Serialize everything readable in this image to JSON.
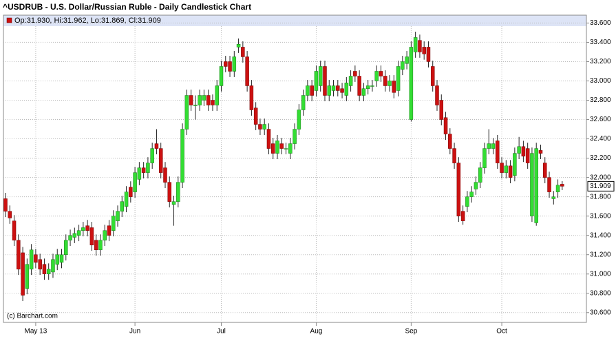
{
  "chart_data": {
    "type": "candlestick",
    "title": "^USDRUB - U.S. Dollar/Russian Ruble - Daily Candlestick Chart",
    "ohlc_label": "Op:31.930, Hi:31.962, Lo:31.869, Cl:31.909",
    "source": "(c) Barchart.com",
    "up_color": "#33dd33",
    "down_color": "#cc1111",
    "grid": true,
    "ylim": [
      30.52,
      33.66
    ],
    "yticks": [
      {
        "value": 30.6,
        "label": "30.600"
      },
      {
        "value": 30.8,
        "label": "30.800"
      },
      {
        "value": 31.0,
        "label": "31.000"
      },
      {
        "value": 31.2,
        "label": "31.200"
      },
      {
        "value": 31.4,
        "label": "31.400"
      },
      {
        "value": 31.6,
        "label": "31.600"
      },
      {
        "value": 31.8,
        "label": "31.800"
      },
      {
        "value": 32.0,
        "label": "32.000"
      },
      {
        "value": 32.2,
        "label": "32.200"
      },
      {
        "value": 32.4,
        "label": "32.400"
      },
      {
        "value": 32.6,
        "label": "32.600"
      },
      {
        "value": 32.8,
        "label": "32.800"
      },
      {
        "value": 33.0,
        "label": "33.000"
      },
      {
        "value": 33.2,
        "label": "33.200"
      },
      {
        "value": 33.4,
        "label": "33.400"
      },
      {
        "value": 33.6,
        "label": "33.600"
      }
    ],
    "categories": [
      null,
      null,
      null,
      null,
      null,
      null,
      null,
      "May 13",
      null,
      null,
      null,
      null,
      null,
      null,
      null,
      null,
      null,
      null,
      null,
      null,
      null,
      null,
      null,
      null,
      null,
      null,
      null,
      null,
      null,
      null,
      "Jun",
      null,
      null,
      null,
      null,
      null,
      null,
      null,
      null,
      null,
      null,
      null,
      null,
      null,
      null,
      null,
      null,
      null,
      null,
      null,
      "Jul",
      null,
      null,
      null,
      null,
      null,
      null,
      null,
      null,
      null,
      null,
      null,
      null,
      null,
      null,
      null,
      null,
      null,
      null,
      null,
      null,
      null,
      "Aug",
      null,
      null,
      null,
      null,
      null,
      null,
      null,
      null,
      null,
      null,
      null,
      null,
      null,
      null,
      null,
      null,
      null,
      null,
      null,
      null,
      null,
      "Sep",
      null,
      null,
      null,
      null,
      null,
      null,
      null,
      null,
      null,
      null,
      null,
      null,
      null,
      null,
      null,
      null,
      null,
      null,
      null,
      null,
      "Oct",
      null,
      null,
      null,
      null,
      null,
      null,
      null,
      null,
      null,
      null,
      null,
      null,
      null,
      null
    ],
    "open": [
      31.78,
      31.65,
      31.55,
      31.35,
      31.22,
      30.85,
      31.05,
      31.2,
      31.15,
      31.1,
      31.0,
      31.02,
      31.1,
      31.12,
      31.2,
      31.35,
      31.38,
      31.4,
      31.45,
      31.5,
      31.48,
      31.35,
      31.25,
      31.35,
      31.5,
      31.45,
      31.55,
      31.65,
      31.7,
      31.9,
      31.85,
      31.98,
      32.1,
      32.05,
      32.15,
      32.35,
      32.3,
      32.1,
      31.95,
      31.72,
      31.75,
      31.95,
      32.5,
      32.85,
      32.75,
      32.75,
      32.8,
      32.85,
      32.8,
      32.75,
      32.95,
      33.2,
      33.2,
      33.1,
      33.35,
      33.35,
      33.25,
      32.95,
      32.72,
      32.55,
      32.5,
      32.5,
      32.35,
      32.25,
      32.35,
      32.3,
      32.25,
      32.35,
      32.5,
      32.7,
      32.85,
      32.95,
      32.9,
      32.95,
      33.15,
      32.85,
      32.9,
      32.95,
      32.92,
      32.85,
      32.95,
      33.1,
      33.05,
      32.85,
      32.92,
      32.95,
      33.0,
      33.1,
      33.05,
      32.95,
      33.0,
      32.9,
      33.12,
      33.18,
      32.6,
      33.3,
      33.42,
      33.35,
      33.35,
      33.15,
      32.95,
      32.8,
      32.62,
      32.45,
      32.3,
      32.15,
      31.65,
      31.7,
      31.8,
      31.88,
      31.95,
      32.1,
      32.3,
      32.3,
      32.38,
      32.15,
      32.05,
      32.12,
      32.02,
      32.25,
      32.32,
      32.3,
      31.6,
      31.53,
      32.28,
      32.15,
      32.0,
      31.78,
      31.85,
      31.93
    ],
    "high": [
      31.84,
      31.71,
      31.61,
      31.41,
      31.28,
      31.16,
      31.31,
      31.26,
      31.21,
      31.16,
      31.11,
      31.21,
      31.26,
      31.26,
      31.41,
      31.46,
      31.48,
      31.51,
      31.54,
      31.56,
      31.54,
      31.41,
      31.41,
      31.51,
      31.56,
      31.66,
      31.71,
      31.81,
      31.91,
      31.96,
      32.11,
      32.16,
      32.16,
      32.21,
      32.36,
      32.5,
      32.36,
      32.16,
      32.01,
      31.81,
      32.01,
      32.56,
      32.91,
      32.91,
      32.85,
      32.91,
      32.91,
      32.91,
      32.86,
      33.01,
      33.21,
      33.26,
      33.26,
      33.31,
      33.44,
      33.41,
      33.31,
      33.01,
      32.78,
      32.61,
      32.61,
      32.56,
      32.41,
      32.44,
      32.41,
      32.36,
      32.41,
      32.56,
      32.76,
      32.91,
      33.01,
      33.01,
      33.16,
      33.21,
      33.21,
      33.01,
      33.01,
      33.01,
      32.98,
      33.04,
      33.11,
      33.16,
      33.11,
      32.98,
      33.01,
      33.01,
      33.16,
      33.16,
      33.11,
      33.06,
      33.06,
      33.21,
      33.26,
      33.31,
      33.41,
      33.51,
      33.48,
      33.41,
      33.41,
      33.21,
      33.01,
      32.86,
      32.68,
      32.51,
      32.36,
      32.21,
      31.71,
      31.86,
      31.91,
      32.01,
      32.16,
      32.36,
      32.5,
      32.41,
      32.44,
      32.21,
      32.18,
      32.18,
      32.31,
      32.42,
      32.38,
      32.36,
      32.31,
      32.36,
      32.34,
      32.21,
      32.06,
      31.86,
      31.98,
      31.962
    ],
    "low": [
      31.59,
      31.52,
      31.29,
      30.99,
      30.72,
      30.79,
      30.99,
      31.06,
      30.99,
      30.94,
      30.94,
      30.96,
      31.04,
      31.06,
      31.14,
      31.29,
      31.32,
      31.34,
      31.39,
      31.39,
      31.24,
      31.19,
      31.19,
      31.29,
      31.34,
      31.39,
      31.49,
      31.59,
      31.64,
      31.74,
      31.79,
      31.92,
      31.99,
      31.99,
      32.09,
      32.24,
      31.99,
      31.89,
      31.69,
      31.5,
      31.69,
      31.89,
      32.44,
      32.69,
      32.6,
      32.69,
      32.74,
      32.69,
      32.69,
      32.69,
      32.89,
      33.09,
      33.04,
      33.04,
      33.29,
      33.19,
      32.89,
      32.64,
      32.49,
      32.44,
      32.44,
      32.24,
      32.19,
      32.19,
      32.24,
      32.24,
      32.19,
      32.29,
      32.44,
      32.64,
      32.79,
      32.79,
      32.84,
      32.89,
      32.79,
      32.79,
      32.84,
      32.84,
      32.82,
      32.79,
      32.89,
      32.99,
      32.79,
      32.79,
      32.86,
      32.89,
      32.94,
      32.99,
      32.89,
      32.89,
      32.82,
      32.84,
      33.06,
      33.12,
      32.58,
      33.24,
      33.24,
      33.22,
      33.14,
      32.89,
      32.69,
      32.54,
      32.39,
      32.24,
      32.09,
      31.54,
      31.51,
      31.64,
      31.74,
      31.82,
      31.89,
      32.04,
      32.24,
      32.24,
      32.09,
      31.99,
      31.99,
      31.94,
      31.96,
      32.19,
      32.16,
      32.09,
      31.54,
      31.5,
      32.19,
      31.94,
      31.79,
      31.72,
      31.79,
      31.869
    ],
    "close": [
      31.65,
      31.58,
      31.35,
      31.05,
      30.78,
      31.1,
      31.25,
      31.12,
      31.05,
      31.0,
      31.05,
      31.15,
      31.2,
      31.2,
      31.35,
      31.4,
      31.42,
      31.45,
      31.48,
      31.45,
      31.3,
      31.25,
      31.35,
      31.45,
      31.4,
      31.6,
      31.65,
      31.75,
      31.85,
      31.8,
      32.05,
      32.1,
      32.05,
      32.15,
      32.3,
      32.3,
      32.05,
      31.95,
      31.75,
      31.75,
      31.95,
      32.5,
      32.85,
      32.75,
      32.75,
      32.85,
      32.85,
      32.75,
      32.75,
      32.95,
      33.15,
      33.15,
      33.1,
      33.25,
      33.38,
      33.25,
      32.95,
      32.7,
      32.55,
      32.5,
      32.55,
      32.3,
      32.25,
      32.38,
      32.3,
      32.3,
      32.35,
      32.5,
      32.7,
      32.85,
      32.95,
      32.85,
      33.1,
      33.15,
      32.85,
      32.95,
      32.95,
      32.9,
      32.88,
      32.98,
      33.05,
      33.05,
      32.85,
      32.92,
      32.95,
      32.95,
      33.1,
      33.05,
      32.95,
      33.0,
      32.88,
      33.15,
      33.2,
      33.25,
      33.35,
      33.45,
      33.3,
      33.28,
      33.2,
      32.95,
      32.75,
      32.6,
      32.45,
      32.3,
      32.15,
      31.6,
      31.55,
      31.8,
      31.85,
      31.95,
      32.1,
      32.3,
      32.35,
      32.35,
      32.15,
      32.05,
      32.12,
      32.0,
      32.25,
      32.32,
      32.22,
      32.15,
      32.25,
      32.3,
      32.25,
      32.0,
      31.85,
      31.8,
      31.92,
      31.909
    ]
  }
}
